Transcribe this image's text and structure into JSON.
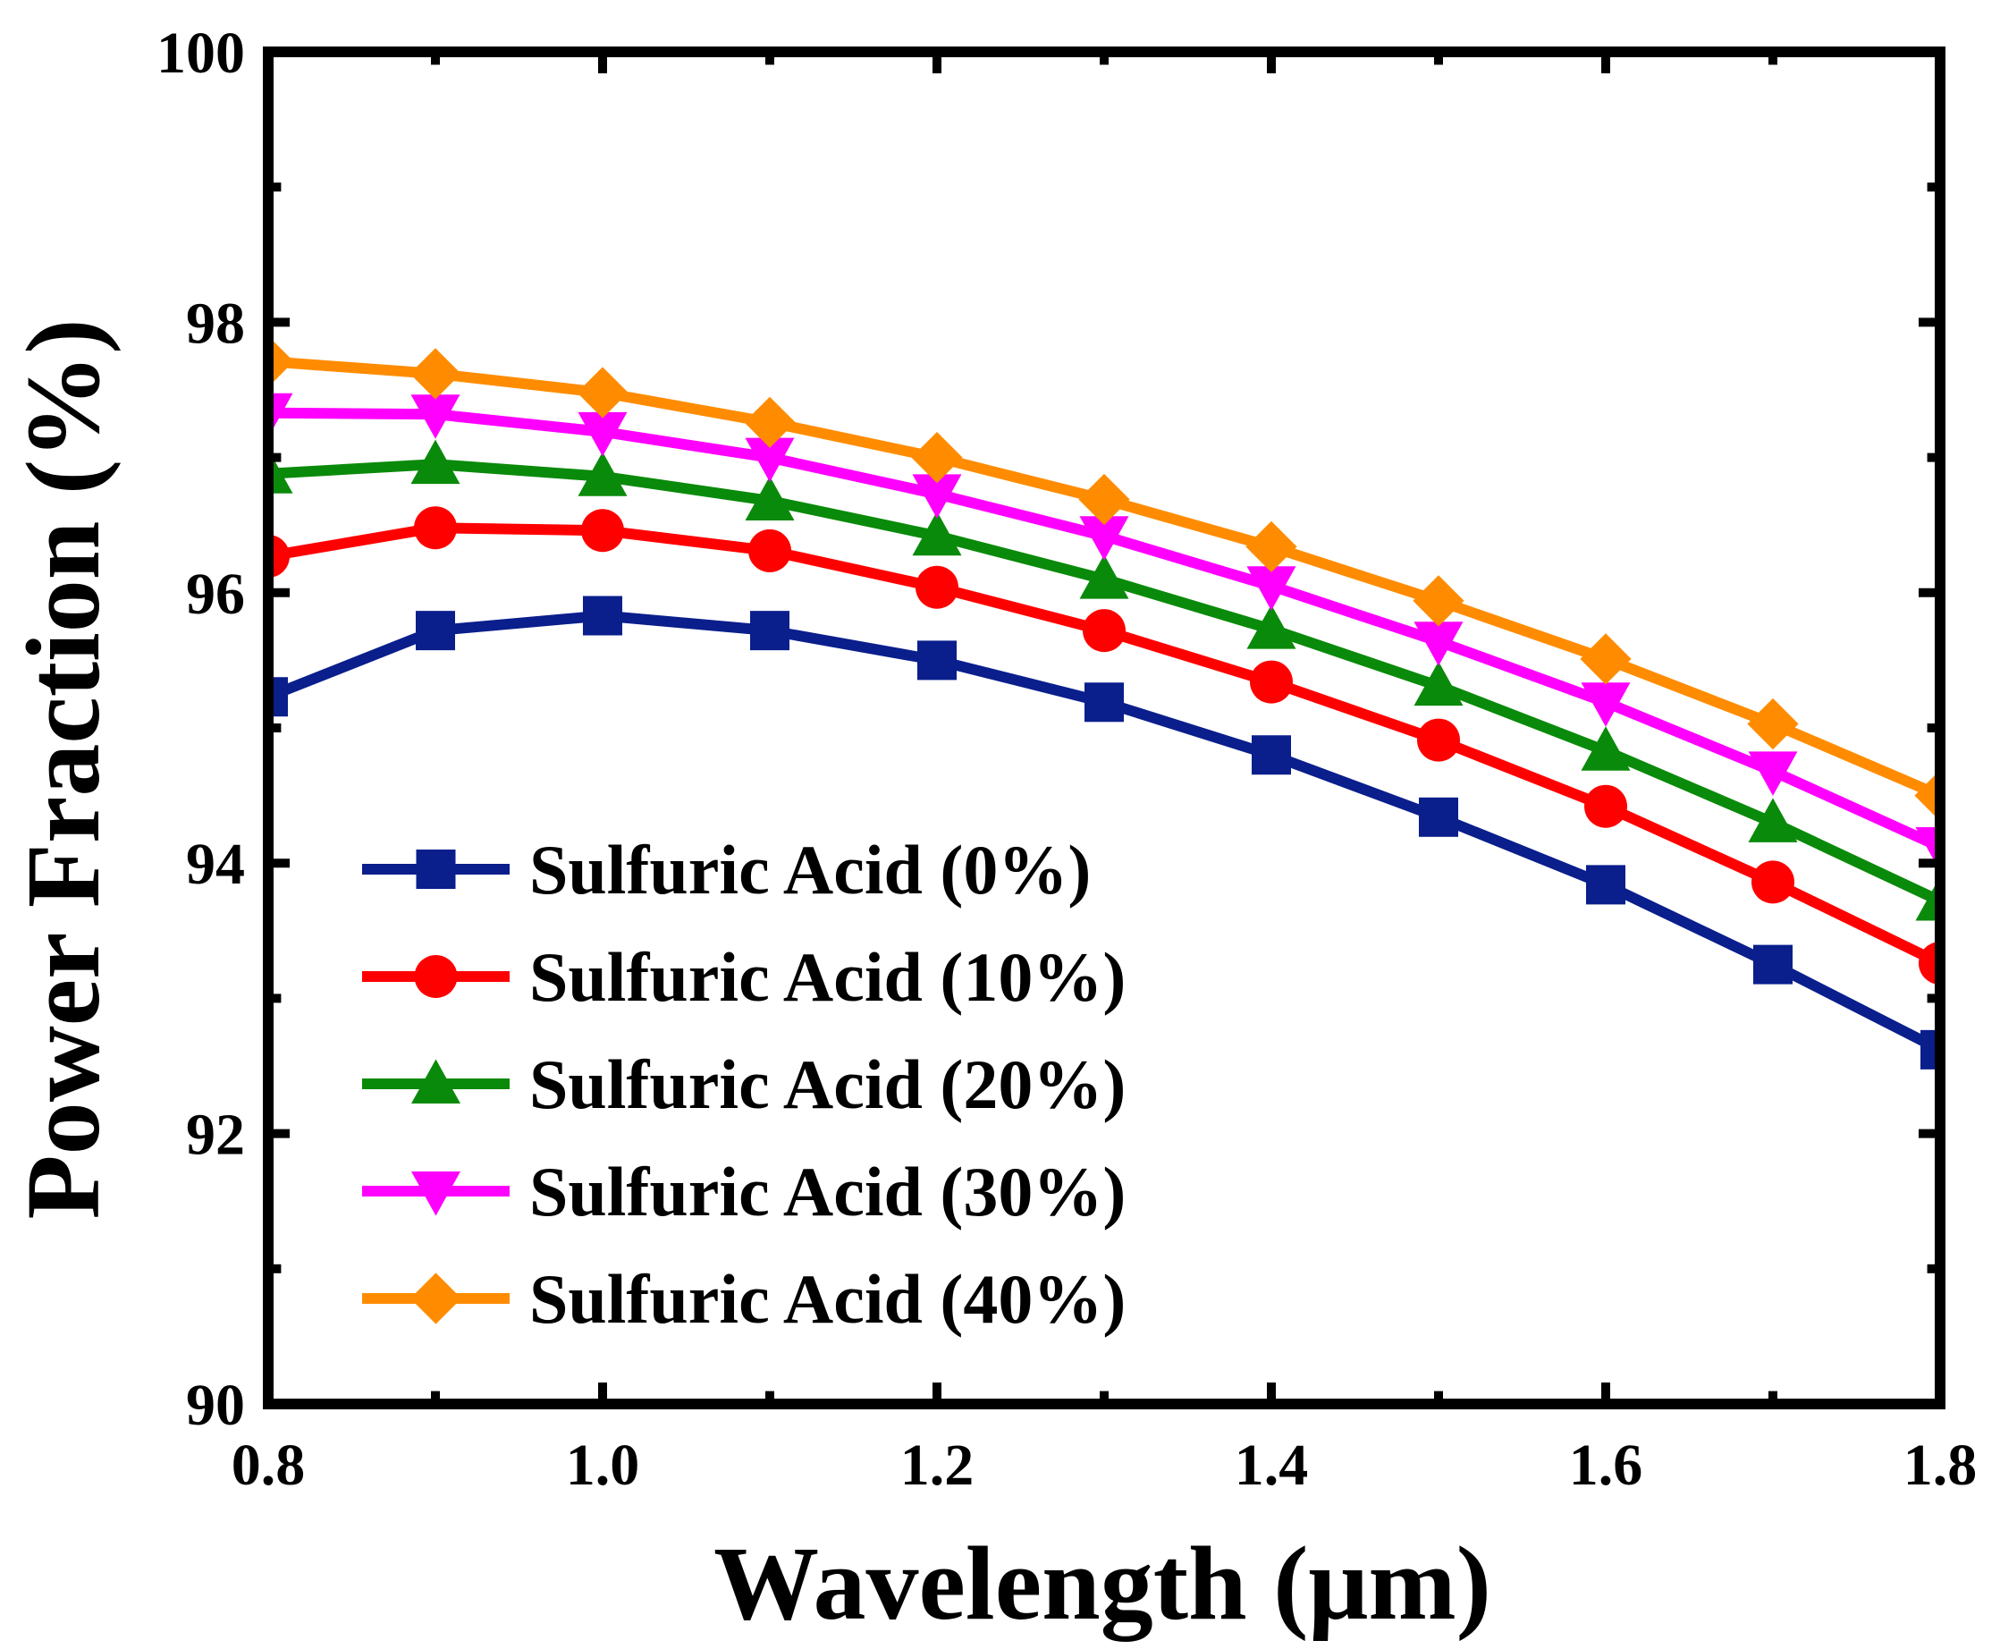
{
  "chart_data": {
    "type": "line",
    "title": "",
    "xlabel": "Wavelength (μm)",
    "ylabel": "Power Fraction (%)",
    "xlim": [
      0.8,
      1.8
    ],
    "ylim": [
      90,
      100
    ],
    "x": [
      0.8,
      0.9,
      1.0,
      1.1,
      1.2,
      1.3,
      1.4,
      1.5,
      1.6,
      1.7,
      1.8
    ],
    "xticks": [
      0.8,
      1.0,
      1.2,
      1.4,
      1.6,
      1.8
    ],
    "xtick_labels": [
      "0.8",
      "1.0",
      "1.2",
      "1.4",
      "1.6",
      "1.8"
    ],
    "yticks": [
      90,
      92,
      94,
      96,
      98,
      100
    ],
    "ytick_labels": [
      "90",
      "92",
      "94",
      "96",
      "98",
      "100"
    ],
    "legend_position": "bottom-left",
    "grid": false,
    "series": [
      {
        "name": "Sulfuric Acid (0%)",
        "color": "#0a1e8c",
        "marker": "square",
        "values": [
          95.23,
          95.72,
          95.83,
          95.72,
          95.5,
          95.19,
          94.8,
          94.34,
          93.84,
          93.25,
          92.62
        ]
      },
      {
        "name": "Sulfuric Acid (10%)",
        "color": "#ff0000",
        "marker": "circle",
        "values": [
          96.27,
          96.48,
          96.46,
          96.31,
          96.04,
          95.72,
          95.34,
          94.91,
          94.42,
          93.86,
          93.26
        ]
      },
      {
        "name": "Sulfuric Acid (20%)",
        "color": "#0a8a0a",
        "marker": "triangle-up",
        "values": [
          96.88,
          96.95,
          96.86,
          96.68,
          96.42,
          96.1,
          95.73,
          95.31,
          94.83,
          94.3,
          93.72
        ]
      },
      {
        "name": "Sulfuric Acid (30%)",
        "color": "#ff00ff",
        "marker": "triangle-down",
        "values": [
          97.33,
          97.32,
          97.19,
          97.0,
          96.73,
          96.42,
          96.05,
          95.64,
          95.19,
          94.68,
          94.12
        ]
      },
      {
        "name": "Sulfuric Acid (40%)",
        "color": "#ff8c00",
        "marker": "diamond",
        "values": [
          97.71,
          97.62,
          97.48,
          97.26,
          97.0,
          96.69,
          96.34,
          95.94,
          95.51,
          95.03,
          94.5
        ]
      }
    ]
  }
}
